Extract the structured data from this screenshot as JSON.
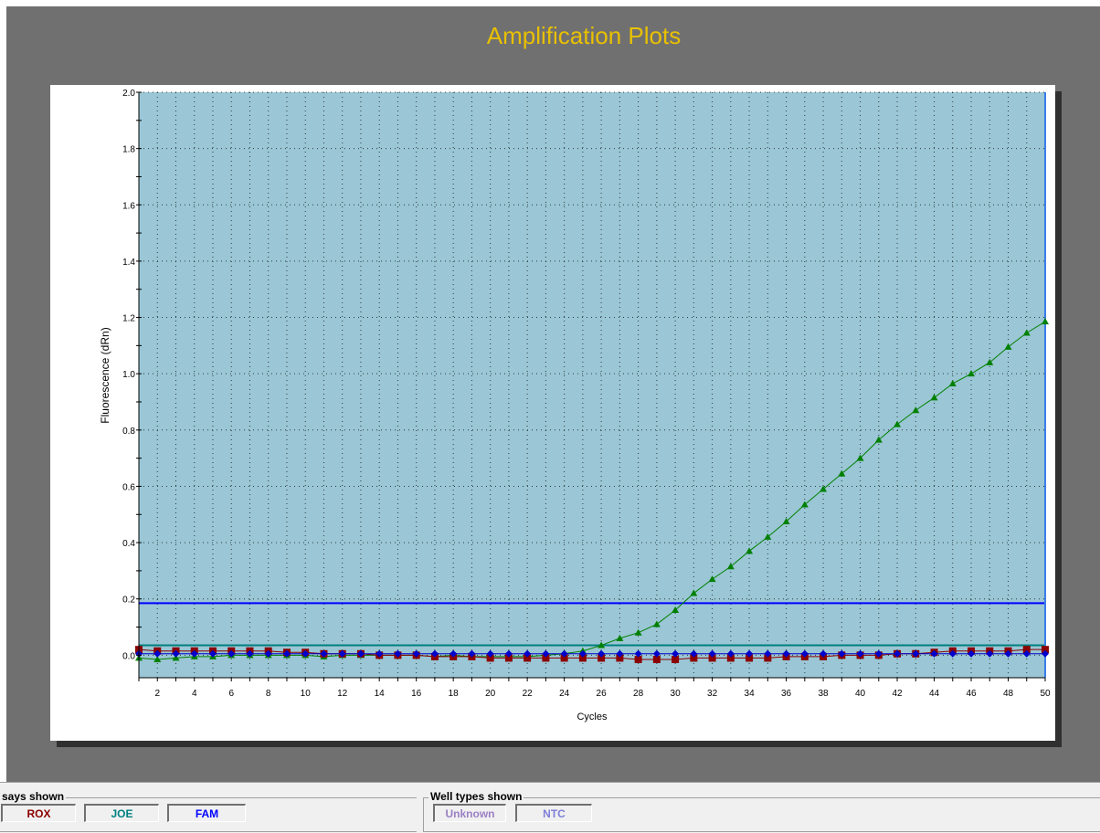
{
  "title": "Amplification Plots",
  "colors": {
    "title": "#e8c000",
    "plot_bg": "#9ac6d5",
    "threshold_blue": "#0000ff",
    "threshold_teal": "#008080",
    "series_fam": "#008000",
    "series_rox": "#8b0000",
    "series_blue": "#0000cc"
  },
  "chart_data": {
    "type": "line",
    "xlabel": "Cycles",
    "ylabel": "Fluorescence (dRn)",
    "xlim": [
      1,
      50
    ],
    "ylim": [
      -0.08,
      2.0
    ],
    "x_ticks": [
      2,
      4,
      6,
      8,
      10,
      12,
      14,
      16,
      18,
      20,
      22,
      24,
      26,
      28,
      30,
      32,
      34,
      36,
      38,
      40,
      42,
      44,
      46,
      48,
      50
    ],
    "y_ticks": [
      "0.0",
      "0.2",
      "0.4",
      "0.6",
      "0.8",
      "1.0",
      "1.2",
      "1.4",
      "1.6",
      "1.8",
      "2.0"
    ],
    "grid": true,
    "thresholds": [
      {
        "value": 0.185,
        "color": "#0000ff"
      },
      {
        "value": 0.035,
        "color": "#008080"
      }
    ],
    "series": [
      {
        "marker": "triangle",
        "color": "#008000",
        "x": [
          1,
          2,
          3,
          4,
          5,
          6,
          7,
          8,
          9,
          10,
          11,
          12,
          13,
          14,
          15,
          16,
          17,
          18,
          19,
          20,
          21,
          22,
          23,
          24,
          25,
          26,
          27,
          28,
          29,
          30,
          31,
          32,
          33,
          34,
          35,
          36,
          37,
          38,
          39,
          40,
          41,
          42,
          43,
          44,
          45,
          46,
          47,
          48,
          49,
          50
        ],
        "values": [
          -0.01,
          -0.015,
          -0.01,
          -0.005,
          -0.005,
          0.0,
          0.0,
          0.0,
          0.0,
          0.0,
          -0.005,
          0.0,
          0.0,
          0.0,
          0.0,
          0.0,
          -0.005,
          0.0,
          -0.005,
          -0.005,
          -0.005,
          -0.005,
          0.0,
          0.005,
          0.015,
          0.035,
          0.06,
          0.08,
          0.11,
          0.16,
          0.22,
          0.27,
          0.315,
          0.37,
          0.42,
          0.475,
          0.535,
          0.59,
          0.645,
          0.7,
          0.765,
          0.82,
          0.87,
          0.915,
          0.965,
          1.0,
          1.04,
          1.095,
          1.145,
          1.185
        ]
      },
      {
        "marker": "square",
        "color": "#8b0000",
        "x": [
          1,
          2,
          3,
          4,
          5,
          6,
          7,
          8,
          9,
          10,
          11,
          12,
          13,
          14,
          15,
          16,
          17,
          18,
          19,
          20,
          21,
          22,
          23,
          24,
          25,
          26,
          27,
          28,
          29,
          30,
          31,
          32,
          33,
          34,
          35,
          36,
          37,
          38,
          39,
          40,
          41,
          42,
          43,
          44,
          45,
          46,
          47,
          48,
          49,
          50
        ],
        "values": [
          0.02,
          0.015,
          0.015,
          0.015,
          0.015,
          0.015,
          0.015,
          0.015,
          0.01,
          0.01,
          0.005,
          0.005,
          0.005,
          0.0,
          0.0,
          0.0,
          -0.005,
          -0.005,
          -0.005,
          -0.01,
          -0.01,
          -0.01,
          -0.01,
          -0.01,
          -0.01,
          -0.01,
          -0.01,
          -0.015,
          -0.015,
          -0.015,
          -0.01,
          -0.01,
          -0.01,
          -0.01,
          -0.01,
          -0.005,
          -0.005,
          -0.005,
          0.0,
          0.0,
          0.0,
          0.005,
          0.005,
          0.01,
          0.015,
          0.015,
          0.015,
          0.015,
          0.02,
          0.02
        ]
      },
      {
        "marker": "diamond",
        "color": "#0000cc",
        "x": [
          1,
          2,
          3,
          4,
          5,
          6,
          7,
          8,
          9,
          10,
          11,
          12,
          13,
          14,
          15,
          16,
          17,
          18,
          19,
          20,
          21,
          22,
          23,
          24,
          25,
          26,
          27,
          28,
          29,
          30,
          31,
          32,
          33,
          34,
          35,
          36,
          37,
          38,
          39,
          40,
          41,
          42,
          43,
          44,
          45,
          46,
          47,
          48,
          49,
          50
        ],
        "values": [
          0.005,
          0.005,
          0.005,
          0.005,
          0.005,
          0.005,
          0.005,
          0.005,
          0.005,
          0.005,
          0.005,
          0.005,
          0.005,
          0.005,
          0.005,
          0.005,
          0.005,
          0.005,
          0.005,
          0.005,
          0.005,
          0.005,
          0.005,
          0.005,
          0.005,
          0.005,
          0.005,
          0.005,
          0.005,
          0.005,
          0.005,
          0.005,
          0.005,
          0.005,
          0.005,
          0.005,
          0.005,
          0.005,
          0.005,
          0.005,
          0.005,
          0.005,
          0.005,
          0.005,
          0.005,
          0.005,
          0.005,
          0.005,
          0.005,
          0.005
        ]
      }
    ]
  },
  "assays": {
    "title": "says shown",
    "buttons": [
      {
        "label": "ROX",
        "color": "#8b0000"
      },
      {
        "label": "JOE",
        "color": "#008080"
      },
      {
        "label": "FAM",
        "color": "#0000ff"
      }
    ]
  },
  "well_types": {
    "title": "Well types shown",
    "buttons": [
      {
        "label": "Unknown",
        "color": "#9b7fc4"
      },
      {
        "label": "NTC",
        "color": "#7f7fd8"
      }
    ]
  }
}
